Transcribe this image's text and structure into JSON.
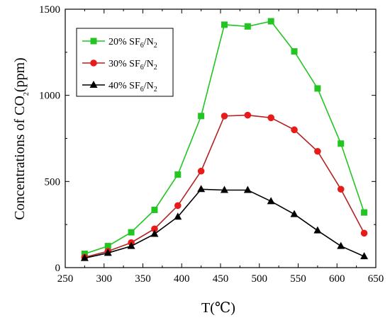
{
  "chart_data": {
    "type": "line",
    "title": "",
    "xlabel": "T(℃)",
    "ylabel_parts": {
      "main": "Concentrations of CO",
      "sub": "2",
      "tail": "(ppm)"
    },
    "xlim": [
      250,
      650
    ],
    "ylim": [
      0,
      1500
    ],
    "x_ticks": [
      250,
      300,
      350,
      400,
      450,
      500,
      550,
      600,
      650
    ],
    "y_ticks": [
      0,
      500,
      1000,
      1500
    ],
    "x": [
      275,
      305,
      335,
      365,
      395,
      425,
      455,
      485,
      515,
      545,
      575,
      605,
      635
    ],
    "grid": false,
    "legend_position": "top-left",
    "series": [
      {
        "name": "20% SF6/N2",
        "label_parts": {
          "a": "20% SF",
          "b": "6",
          "c": "/N",
          "d": "2"
        },
        "color": "#22c522",
        "marker": "square",
        "values": [
          80,
          125,
          205,
          335,
          540,
          880,
          1410,
          1400,
          1430,
          1255,
          1040,
          720,
          320
        ]
      },
      {
        "name": "30% SF6/N2",
        "label_parts": {
          "a": "30% SF",
          "b": "6",
          "c": "/N",
          "d": "2"
        },
        "color": "#b22222",
        "marker_color": "#e81b1b",
        "marker": "circle",
        "values": [
          60,
          95,
          145,
          225,
          360,
          560,
          880,
          885,
          870,
          800,
          675,
          455,
          200
        ]
      },
      {
        "name": "40% SF6/N2",
        "label_parts": {
          "a": "40% SF",
          "b": "6",
          "c": "/N",
          "d": "2"
        },
        "color": "#000000",
        "marker": "triangle",
        "values": [
          55,
          85,
          125,
          195,
          295,
          455,
          450,
          450,
          385,
          310,
          215,
          125,
          65
        ]
      }
    ]
  }
}
